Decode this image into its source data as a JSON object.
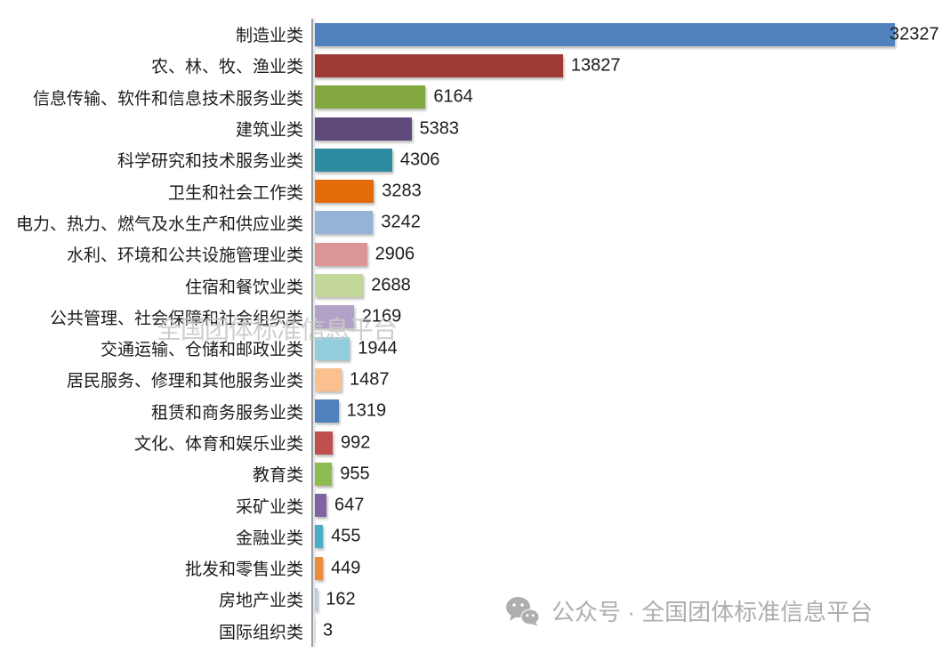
{
  "chart_data": {
    "type": "bar",
    "orientation": "horizontal",
    "title": "",
    "xlabel": "",
    "ylabel": "",
    "xlim": [
      0,
      32327
    ],
    "grid": false,
    "legend": false,
    "value_labels_shown": true,
    "axis_line_color": "#9aa0a6",
    "categories": [
      "制造业类",
      "农、林、牧、渔业类",
      "信息传输、软件和信息技术服务业类",
      "建筑业类",
      "科学研究和技术服务业类",
      "卫生和社会工作类",
      "电力、热力、燃气及水生产和供应业类",
      "水利、环境和公共设施管理业类",
      "住宿和餐饮业类",
      "公共管理、社会保障和社会组织类",
      "交通运输、仓储和邮政业类",
      "居民服务、修理和其他服务业类",
      "租赁和商务服务业类",
      "文化、体育和娱乐业类",
      "教育类",
      "采矿业类",
      "金融业类",
      "批发和零售业类",
      "房地产业类",
      "国际组织类"
    ],
    "values": [
      32327,
      13827,
      6164,
      5383,
      4306,
      3283,
      3242,
      2906,
      2688,
      2169,
      1944,
      1487,
      1319,
      992,
      955,
      647,
      455,
      449,
      162,
      3
    ],
    "bar_colors": [
      "#4F81BD",
      "#9E3B35",
      "#82A73F",
      "#604A7B",
      "#2E8CA0",
      "#E36C0A",
      "#95B3D7",
      "#D99694",
      "#C3D69B",
      "#B2A2C7",
      "#92CDDC",
      "#FAC08F",
      "#4F81BD",
      "#C0504D",
      "#8FBC51",
      "#8064A2",
      "#4BACC6",
      "#EB8B3D",
      "#B9CDE5",
      "#C6D9F1"
    ]
  },
  "watermark_center": {
    "text": "全国团体标准信息平台",
    "color": "#c9c9c9"
  },
  "watermark_bottom": {
    "icon": "wechat-icon",
    "text": "公众号 · 全国团体标准信息平台",
    "color": "#aeaeae"
  }
}
